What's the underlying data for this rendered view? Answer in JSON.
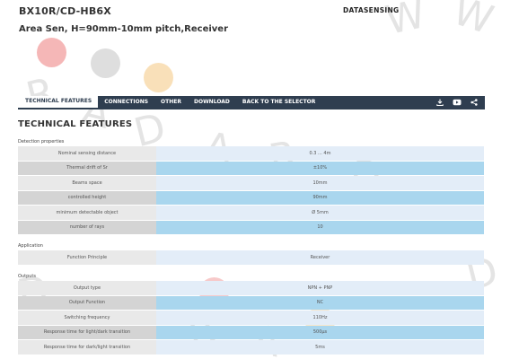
{
  "header": {
    "product_code": "BX10R/CD-HB6X",
    "subtitle": "Area Sen, H=90mm-10mm pitch,Receiver",
    "brand_logo": "DATASENSING"
  },
  "watermark": {
    "letter_w1": "W",
    "letter_r1": "R",
    "letter_a1": "A",
    "letter_d1": "D",
    "letter_w2": "W",
    "letter_a2": "A",
    "letter_r2": "R",
    "letter_d2": "D",
    "letter_d3": "D",
    "letter_r3": "R",
    "letter_a3": "A",
    "letter_d4": "D"
  },
  "nav": {
    "tabs": [
      "TECHNICAL FEATURES",
      "CONNECTIONS",
      "OTHER",
      "DOWNLOAD",
      "BACK TO THE SELECTOR"
    ],
    "active_index": 0,
    "icons": [
      "download-icon",
      "youtube-icon",
      "share-icon"
    ]
  },
  "section_title": "TECHNICAL FEATURES",
  "groups": [
    {
      "label": "Detection properties",
      "rows": [
        {
          "label": "Nominal sensing distance",
          "value": "0.3 ... 4m"
        },
        {
          "label": "Thermal drift of Sr",
          "value": "±10%"
        },
        {
          "label": "Beams space",
          "value": "10mm"
        },
        {
          "label": "controlled height",
          "value": "90mm"
        },
        {
          "label": "minimum detectable object",
          "value": "Ø 5mm"
        },
        {
          "label": "number of rays",
          "value": "10"
        }
      ]
    },
    {
      "label": "Application",
      "rows": [
        {
          "label": "Function Principle",
          "value": "Receiver"
        }
      ]
    },
    {
      "label": "Outputs",
      "rows": [
        {
          "label": "Output type",
          "value": "NPN + PNP"
        },
        {
          "label": "Output Function",
          "value": "NC"
        },
        {
          "label": "Switching frequency",
          "value": "110Hz"
        },
        {
          "label": "Response time for light/dark transition",
          "value": "500µs"
        },
        {
          "label": "Response time for dark/light transition",
          "value": "5ms"
        }
      ]
    }
  ],
  "colors": {
    "nav_bg": "#2f3e50",
    "label_cell": "#e9e9e9",
    "label_cell_alt": "#d4d4d4",
    "value_cell": "#e3edf8",
    "value_cell_alt": "#a9d6ee",
    "watermark_red": "#f2a5a5",
    "watermark_gray": "#d6d6d6",
    "watermark_orange": "#f7d8a8"
  }
}
